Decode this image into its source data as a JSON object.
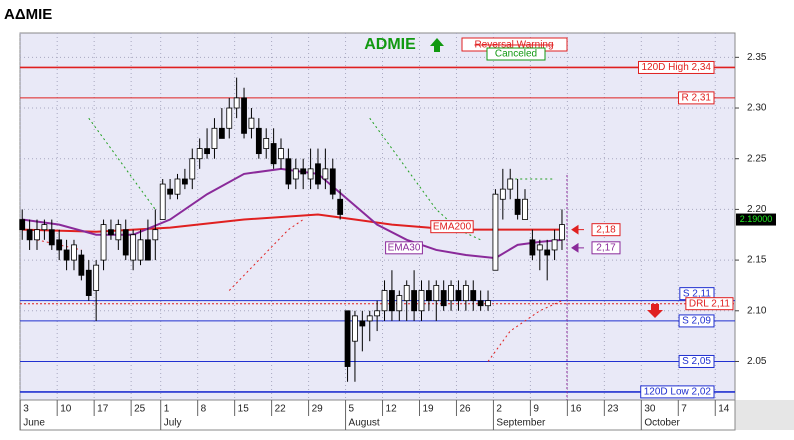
{
  "title": "ΑΔΜΙΕ",
  "chart_data": {
    "type": "candlestick",
    "symbol": "ADMIE",
    "annotations": [
      "Reversal Warning",
      "Canceled"
    ],
    "xlim": [
      -0.3,
      96.4
    ],
    "ylim": [
      2.012,
      2.374
    ],
    "xticks": [
      {
        "value": 0,
        "label": "3"
      },
      {
        "value": 5,
        "label": "10"
      },
      {
        "value": 10,
        "label": "17"
      },
      {
        "value": 15,
        "label": "25"
      },
      {
        "value": 19,
        "label": "1"
      },
      {
        "value": 24,
        "label": "8"
      },
      {
        "value": 29,
        "label": "15"
      },
      {
        "value": 34,
        "label": "22"
      },
      {
        "value": 39,
        "label": "29"
      },
      {
        "value": 44,
        "label": "5"
      },
      {
        "value": 49,
        "label": "12"
      },
      {
        "value": 54,
        "label": "19"
      },
      {
        "value": 59,
        "label": "26"
      },
      {
        "value": 64,
        "label": "2"
      },
      {
        "value": 69,
        "label": "9"
      },
      {
        "value": 74,
        "label": "16"
      },
      {
        "value": 79,
        "label": "23"
      },
      {
        "value": 84,
        "label": "30"
      },
      {
        "value": 89,
        "label": "7"
      },
      {
        "value": 94,
        "label": "14"
      }
    ],
    "months": [
      {
        "value": 0,
        "label": "June"
      },
      {
        "value": 19,
        "label": "July"
      },
      {
        "value": 44,
        "label": "August"
      },
      {
        "value": 64,
        "label": "September"
      },
      {
        "value": 84,
        "label": "October"
      }
    ],
    "yticks": [
      2.35,
      {
        "value": 2.3,
        "label": "2.30"
      },
      2.25,
      {
        "value": 2.2,
        "label": "2.20"
      },
      2.15,
      {
        "value": 2.1,
        "label": "2.10"
      },
      2.05
    ],
    "grid": true,
    "up_color": "#ffffff",
    "down_color": "#000000",
    "open": [
      2.19,
      2.18,
      2.17,
      2.18,
      2.18,
      2.17,
      2.16,
      2.15,
      2.155,
      2.14,
      2.12,
      2.15,
      2.18,
      2.17,
      2.18,
      2.15,
      2.15,
      2.17,
      2.17,
      2.19,
      2.22,
      2.215,
      2.23,
      2.23,
      2.25,
      2.26,
      2.26,
      2.28,
      2.28,
      2.3,
      2.31,
      2.28,
      2.28,
      2.26,
      2.265,
      2.25,
      2.25,
      2.23,
      2.24,
      2.23,
      2.245,
      2.23,
      2.24,
      2.21,
      2.1,
      2.07,
      2.09,
      2.09,
      2.095,
      2.1,
      2.12,
      2.1,
      2.11,
      2.12,
      2.1,
      2.12,
      2.11,
      2.12,
      2.11,
      2.12,
      2.11,
      2.12,
      2.11,
      2.105,
      2.14,
      2.21,
      2.22,
      2.21,
      2.19,
      2.17,
      2.16,
      2.16,
      2.16,
      2.17
    ],
    "high": [
      2.2,
      2.19,
      2.19,
      2.19,
      2.19,
      2.18,
      2.17,
      2.17,
      2.16,
      2.15,
      2.15,
      2.19,
      2.19,
      2.19,
      2.19,
      2.18,
      2.18,
      2.19,
      2.2,
      2.23,
      2.23,
      2.235,
      2.24,
      2.26,
      2.27,
      2.28,
      2.29,
      2.3,
      2.31,
      2.33,
      2.32,
      2.3,
      2.29,
      2.28,
      2.28,
      2.27,
      2.26,
      2.25,
      2.25,
      2.26,
      2.26,
      2.26,
      2.25,
      2.22,
      2.1,
      2.1,
      2.1,
      2.1,
      2.11,
      2.13,
      2.14,
      2.12,
      2.13,
      2.14,
      2.13,
      2.13,
      2.13,
      2.13,
      2.13,
      2.13,
      2.13,
      2.13,
      2.12,
      2.12,
      2.22,
      2.24,
      2.24,
      2.23,
      2.22,
      2.18,
      2.17,
      2.17,
      2.18,
      2.2
    ],
    "low": [
      2.17,
      2.16,
      2.16,
      2.17,
      2.16,
      2.15,
      2.14,
      2.14,
      2.13,
      2.11,
      2.09,
      2.14,
      2.17,
      2.16,
      2.15,
      2.14,
      2.145,
      2.15,
      2.15,
      2.19,
      2.21,
      2.21,
      2.22,
      2.22,
      2.24,
      2.25,
      2.25,
      2.27,
      2.27,
      2.29,
      2.27,
      2.27,
      2.25,
      2.25,
      2.24,
      2.24,
      2.22,
      2.22,
      2.22,
      2.22,
      2.22,
      2.22,
      2.21,
      2.19,
      2.03,
      2.03,
      2.06,
      2.07,
      2.08,
      2.09,
      2.09,
      2.09,
      2.09,
      2.09,
      2.09,
      2.1,
      2.09,
      2.1,
      2.1,
      2.1,
      2.1,
      2.1,
      2.1,
      2.1,
      2.14,
      2.19,
      2.21,
      2.19,
      2.19,
      2.15,
      2.14,
      2.13,
      2.15,
      2.16
    ],
    "close": [
      2.18,
      2.17,
      2.18,
      2.185,
      2.165,
      2.16,
      2.15,
      2.165,
      2.135,
      2.115,
      2.145,
      2.185,
      2.175,
      2.185,
      2.155,
      2.175,
      2.17,
      2.15,
      2.18,
      2.225,
      2.215,
      2.23,
      2.225,
      2.25,
      2.26,
      2.255,
      2.28,
      2.27,
      2.3,
      2.31,
      2.275,
      2.29,
      2.255,
      2.27,
      2.245,
      2.26,
      2.225,
      2.24,
      2.235,
      2.24,
      2.225,
      2.24,
      2.215,
      2.195,
      2.045,
      2.095,
      2.085,
      2.095,
      2.1,
      2.12,
      2.1,
      2.115,
      2.125,
      2.1,
      2.12,
      2.11,
      2.125,
      2.105,
      2.125,
      2.11,
      2.125,
      2.11,
      2.105,
      2.11,
      2.215,
      2.22,
      2.23,
      2.195,
      2.21,
      2.155,
      2.165,
      2.155,
      2.17,
      2.185
    ],
    "lines": [
      {
        "name": "EMA200",
        "color": "#e02020",
        "end_label": "2,18",
        "x": [
          0,
          10,
          20,
          30,
          40,
          45,
          50,
          55,
          60,
          65,
          73
        ],
        "values": [
          2.18,
          2.178,
          2.182,
          2.19,
          2.195,
          2.19,
          2.185,
          2.182,
          2.18,
          2.18,
          2.18
        ]
      },
      {
        "name": "EMA30",
        "color": "#8a2a9a",
        "end_label": "2,17",
        "x": [
          0,
          5,
          10,
          15,
          20,
          25,
          30,
          35,
          40,
          44,
          48,
          52,
          56,
          60,
          64,
          67,
          70,
          73
        ],
        "values": [
          2.19,
          2.185,
          2.175,
          2.175,
          2.19,
          2.215,
          2.235,
          2.24,
          2.235,
          2.21,
          2.185,
          2.17,
          2.16,
          2.155,
          2.152,
          2.165,
          2.168,
          2.17
        ]
      }
    ],
    "stops": [
      {
        "color": "#22a022",
        "x": [
          9,
          12,
          15,
          18,
          19,
          47,
          50,
          53,
          56,
          59,
          62,
          63,
          66,
          72
        ],
        "values": [
          2.29,
          2.26,
          2.23,
          2.2,
          null,
          2.29,
          2.26,
          2.23,
          2.2,
          2.18,
          2.17,
          null,
          2.23,
          2.23
        ]
      },
      {
        "color": "#e02020",
        "x": [
          2,
          8,
          9,
          28,
          32,
          36,
          38,
          44,
          63,
          66,
          70,
          73
        ],
        "values": [
          2.17,
          2.16,
          null,
          2.12,
          2.15,
          2.18,
          2.19,
          null,
          2.05,
          2.08,
          2.1,
          2.11
        ]
      }
    ],
    "levels": [
      {
        "label": "120D High 2,34",
        "value": 2.34,
        "color": "#e02020"
      },
      {
        "label": "R 2,31",
        "value": 2.31,
        "color": "#e02020"
      },
      {
        "label": "S 2,11",
        "value": 2.11,
        "color": "#2030d0"
      },
      {
        "label": "DRL 2,11",
        "value": 2.107,
        "color": "#e02020",
        "dotted": true
      },
      {
        "label": "S 2,09",
        "value": 2.09,
        "color": "#2030d0"
      },
      {
        "label": "S 2,05",
        "value": 2.05,
        "color": "#2030d0"
      },
      {
        "label": "120D Low 2,02",
        "value": 2.02,
        "color": "#2030d0"
      }
    ],
    "last_price": {
      "value": 2.19,
      "label": "2.19000"
    }
  }
}
